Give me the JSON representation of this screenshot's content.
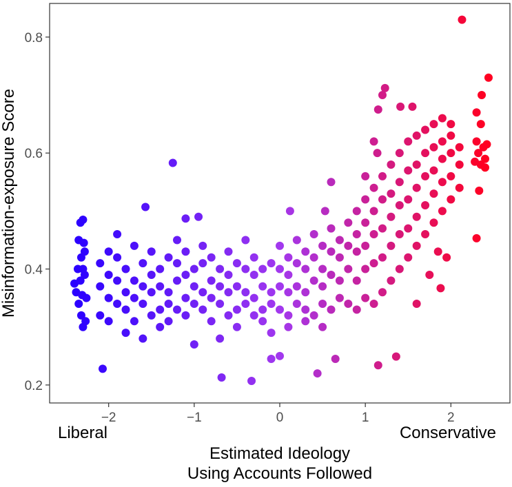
{
  "chart_data": {
    "type": "scatter",
    "title": "",
    "xlabel": "Estimated Ideology\nUsing Accounts Followed",
    "xlabel_lines": [
      "Estimated Ideology",
      "Using Accounts Followed"
    ],
    "ylabel": "Misinformation-exposure Score",
    "x_end_labels": {
      "left": "Liberal",
      "right": "Conservative"
    },
    "xlim": [
      -2.69,
      2.69
    ],
    "ylim": [
      0.169,
      0.858
    ],
    "x_ticks": [
      -2,
      -1,
      0,
      1,
      2
    ],
    "x_tick_labels": [
      "−2",
      "−1",
      "0",
      "1",
      "2"
    ],
    "y_ticks": [
      0.2,
      0.4,
      0.6,
      0.8
    ],
    "y_tick_labels": [
      "0.2",
      "0.4",
      "0.6",
      "0.8"
    ],
    "grid": false,
    "color_scale": {
      "low": "#2a00ff",
      "mid": "#a238ee",
      "high": "#ff0022",
      "mapped_to": "x"
    },
    "points": [
      [
        -2.4,
        0.375
      ],
      [
        -2.38,
        0.36
      ],
      [
        -2.35,
        0.45
      ],
      [
        -2.33,
        0.48
      ],
      [
        -2.3,
        0.485
      ],
      [
        -2.32,
        0.42
      ],
      [
        -2.3,
        0.4
      ],
      [
        -2.28,
        0.39
      ],
      [
        -2.35,
        0.34
      ],
      [
        -2.32,
        0.32
      ],
      [
        -2.3,
        0.3
      ],
      [
        -2.27,
        0.31
      ],
      [
        -2.33,
        0.38
      ],
      [
        -2.28,
        0.43
      ],
      [
        -2.36,
        0.4
      ],
      [
        -2.26,
        0.35
      ],
      [
        -2.31,
        0.355
      ],
      [
        -2.29,
        0.445
      ],
      [
        -2.1,
        0.32
      ],
      [
        -2.1,
        0.37
      ],
      [
        -2.1,
        0.41
      ],
      [
        -2.0,
        0.35
      ],
      [
        -2.0,
        0.39
      ],
      [
        -2.0,
        0.43
      ],
      [
        -2.0,
        0.31
      ],
      [
        -1.9,
        0.34
      ],
      [
        -1.9,
        0.38
      ],
      [
        -1.9,
        0.42
      ],
      [
        -1.9,
        0.46
      ],
      [
        -1.8,
        0.33
      ],
      [
        -1.8,
        0.36
      ],
      [
        -1.8,
        0.4
      ],
      [
        -1.8,
        0.29
      ],
      [
        -1.7,
        0.31
      ],
      [
        -1.7,
        0.35
      ],
      [
        -1.7,
        0.38
      ],
      [
        -1.7,
        0.44
      ],
      [
        -1.6,
        0.34
      ],
      [
        -1.6,
        0.37
      ],
      [
        -1.6,
        0.41
      ],
      [
        -1.6,
        0.28
      ],
      [
        -1.5,
        0.32
      ],
      [
        -1.5,
        0.36
      ],
      [
        -1.5,
        0.39
      ],
      [
        -1.5,
        0.43
      ],
      [
        -1.4,
        0.33
      ],
      [
        -1.4,
        0.37
      ],
      [
        -1.4,
        0.4
      ],
      [
        -1.4,
        0.3
      ],
      [
        -1.3,
        0.34
      ],
      [
        -1.3,
        0.36
      ],
      [
        -1.3,
        0.42
      ],
      [
        -1.3,
        0.31
      ],
      [
        -1.2,
        0.33
      ],
      [
        -1.2,
        0.38
      ],
      [
        -1.2,
        0.41
      ],
      [
        -1.2,
        0.45
      ],
      [
        -1.1,
        0.32
      ],
      [
        -1.1,
        0.35
      ],
      [
        -1.1,
        0.39
      ],
      [
        -1.1,
        0.43
      ],
      [
        -1.0,
        0.34
      ],
      [
        -1.0,
        0.37
      ],
      [
        -1.0,
        0.4
      ],
      [
        -1.0,
        0.27
      ],
      [
        -0.9,
        0.33
      ],
      [
        -0.9,
        0.36
      ],
      [
        -0.9,
        0.41
      ],
      [
        -0.9,
        0.44
      ],
      [
        -0.8,
        0.31
      ],
      [
        -0.8,
        0.35
      ],
      [
        -0.8,
        0.38
      ],
      [
        -0.8,
        0.42
      ],
      [
        -0.7,
        0.34
      ],
      [
        -0.7,
        0.37
      ],
      [
        -0.7,
        0.4
      ],
      [
        -0.7,
        0.28
      ],
      [
        -0.6,
        0.32
      ],
      [
        -0.6,
        0.36
      ],
      [
        -0.6,
        0.39
      ],
      [
        -0.6,
        0.43
      ],
      [
        -0.5,
        0.33
      ],
      [
        -0.5,
        0.37
      ],
      [
        -0.5,
        0.41
      ],
      [
        -0.5,
        0.3
      ],
      [
        -0.4,
        0.34
      ],
      [
        -0.4,
        0.36
      ],
      [
        -0.4,
        0.4
      ],
      [
        -0.4,
        0.45
      ],
      [
        -0.3,
        0.32
      ],
      [
        -0.3,
        0.35
      ],
      [
        -0.3,
        0.39
      ],
      [
        -0.3,
        0.42
      ],
      [
        -0.2,
        0.33
      ],
      [
        -0.2,
        0.37
      ],
      [
        -0.2,
        0.4
      ],
      [
        -0.2,
        0.31
      ],
      [
        -0.1,
        0.34
      ],
      [
        -0.1,
        0.36
      ],
      [
        -0.1,
        0.41
      ],
      [
        -0.1,
        0.29
      ],
      [
        0.0,
        0.33
      ],
      [
        0.0,
        0.37
      ],
      [
        0.0,
        0.4
      ],
      [
        0.0,
        0.44
      ],
      [
        0.1,
        0.32
      ],
      [
        0.1,
        0.36
      ],
      [
        0.1,
        0.39
      ],
      [
        0.1,
        0.42
      ],
      [
        0.1,
        0.3
      ],
      [
        0.2,
        0.34
      ],
      [
        0.2,
        0.37
      ],
      [
        0.2,
        0.41
      ],
      [
        0.2,
        0.45
      ],
      [
        0.3,
        0.33
      ],
      [
        0.3,
        0.36
      ],
      [
        0.3,
        0.4
      ],
      [
        0.3,
        0.43
      ],
      [
        0.3,
        0.31
      ],
      [
        0.4,
        0.32
      ],
      [
        0.4,
        0.38
      ],
      [
        0.4,
        0.42
      ],
      [
        0.4,
        0.46
      ],
      [
        0.5,
        0.34
      ],
      [
        0.5,
        0.37
      ],
      [
        0.5,
        0.4
      ],
      [
        0.5,
        0.44
      ],
      [
        0.5,
        0.3
      ],
      [
        0.6,
        0.33
      ],
      [
        0.6,
        0.39
      ],
      [
        0.6,
        0.43
      ],
      [
        0.6,
        0.47
      ],
      [
        0.7,
        0.35
      ],
      [
        0.7,
        0.38
      ],
      [
        0.7,
        0.42
      ],
      [
        0.7,
        0.45
      ],
      [
        0.8,
        0.34
      ],
      [
        0.8,
        0.4
      ],
      [
        0.8,
        0.44
      ],
      [
        0.8,
        0.48
      ],
      [
        0.9,
        0.33
      ],
      [
        0.9,
        0.38
      ],
      [
        0.9,
        0.43
      ],
      [
        0.9,
        0.46
      ],
      [
        0.9,
        0.5
      ],
      [
        1.0,
        0.35
      ],
      [
        1.0,
        0.4
      ],
      [
        1.0,
        0.44
      ],
      [
        1.0,
        0.48
      ],
      [
        1.0,
        0.52
      ],
      [
        1.1,
        0.34
      ],
      [
        1.1,
        0.41
      ],
      [
        1.1,
        0.46
      ],
      [
        1.1,
        0.5
      ],
      [
        1.1,
        0.54
      ],
      [
        1.2,
        0.36
      ],
      [
        1.2,
        0.42
      ],
      [
        1.2,
        0.47
      ],
      [
        1.2,
        0.52
      ],
      [
        1.2,
        0.56
      ],
      [
        1.3,
        0.38
      ],
      [
        1.3,
        0.44
      ],
      [
        1.3,
        0.49
      ],
      [
        1.3,
        0.53
      ],
      [
        1.3,
        0.58
      ],
      [
        1.4,
        0.4
      ],
      [
        1.4,
        0.46
      ],
      [
        1.4,
        0.51
      ],
      [
        1.4,
        0.55
      ],
      [
        1.4,
        0.6
      ],
      [
        1.5,
        0.42
      ],
      [
        1.5,
        0.47
      ],
      [
        1.5,
        0.52
      ],
      [
        1.5,
        0.57
      ],
      [
        1.5,
        0.62
      ],
      [
        1.6,
        0.44
      ],
      [
        1.6,
        0.49
      ],
      [
        1.6,
        0.54
      ],
      [
        1.6,
        0.58
      ],
      [
        1.6,
        0.63
      ],
      [
        1.7,
        0.46
      ],
      [
        1.7,
        0.51
      ],
      [
        1.7,
        0.56
      ],
      [
        1.7,
        0.6
      ],
      [
        1.7,
        0.64
      ],
      [
        1.8,
        0.48
      ],
      [
        1.8,
        0.53
      ],
      [
        1.8,
        0.57
      ],
      [
        1.8,
        0.61
      ],
      [
        1.8,
        0.65
      ],
      [
        1.9,
        0.5
      ],
      [
        1.9,
        0.55
      ],
      [
        1.9,
        0.59
      ],
      [
        1.9,
        0.62
      ],
      [
        1.9,
        0.66
      ],
      [
        2.0,
        0.52
      ],
      [
        2.0,
        0.56
      ],
      [
        2.0,
        0.6
      ],
      [
        2.0,
        0.63
      ],
      [
        2.0,
        0.65
      ],
      [
        2.1,
        0.54
      ],
      [
        2.1,
        0.58
      ],
      [
        2.1,
        0.61
      ],
      [
        2.3,
        0.62
      ],
      [
        2.32,
        0.6
      ],
      [
        2.35,
        0.58
      ],
      [
        2.38,
        0.61
      ],
      [
        2.4,
        0.575
      ],
      [
        2.42,
        0.615
      ],
      [
        2.33,
        0.535
      ],
      [
        2.35,
        0.65
      ],
      [
        2.3,
        0.67
      ],
      [
        2.36,
        0.7
      ],
      [
        2.28,
        0.585
      ],
      [
        2.4,
        0.59
      ],
      [
        2.13,
        0.83
      ],
      [
        2.44,
        0.73
      ],
      [
        -1.25,
        0.583
      ],
      [
        -2.07,
        0.228
      ],
      [
        -0.68,
        0.213
      ],
      [
        -0.33,
        0.207
      ],
      [
        0.44,
        0.22
      ],
      [
        1.15,
        0.234
      ],
      [
        1.36,
        0.249
      ],
      [
        1.23,
        0.712
      ],
      [
        1.41,
        0.68
      ],
      [
        1.55,
        0.68
      ],
      [
        2.3,
        0.453
      ],
      [
        1.88,
        0.367
      ],
      [
        -1.57,
        0.507
      ],
      [
        0.12,
        0.5
      ],
      [
        0.53,
        0.5
      ],
      [
        -0.95,
        0.49
      ],
      [
        -1.1,
        0.487
      ],
      [
        1.0,
        0.56
      ],
      [
        1.1,
        0.62
      ],
      [
        1.15,
        0.675
      ],
      [
        1.2,
        0.7
      ],
      [
        1.14,
        0.6
      ],
      [
        0.6,
        0.55
      ],
      [
        1.6,
        0.34
      ],
      [
        1.85,
        0.43
      ],
      [
        1.95,
        0.42
      ],
      [
        -0.1,
        0.245
      ],
      [
        0.0,
        0.25
      ],
      [
        0.65,
        0.245
      ],
      [
        1.75,
        0.39
      ]
    ]
  }
}
